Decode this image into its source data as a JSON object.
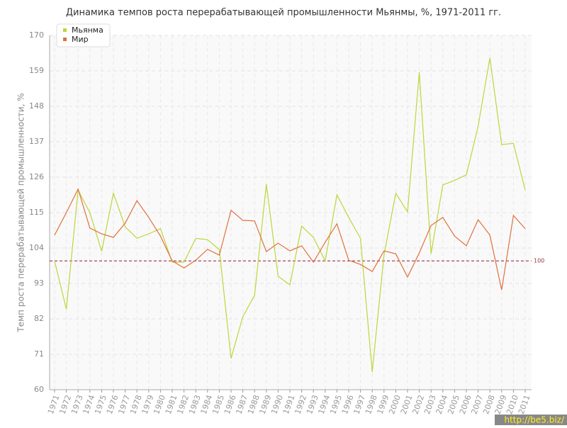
{
  "chart_data": {
    "type": "line",
    "title": "Динамика темпов роста перерабатывающей промышленности Мьянмы, %, 1971-2011 гг.",
    "y_label": "Темп роста перерабатывающей промышленности, %",
    "categories": [
      "1971",
      "1972",
      "1973",
      "1974",
      "1975",
      "1976",
      "1977",
      "1978",
      "1979",
      "1980",
      "1981",
      "1982",
      "1983",
      "1984",
      "1985",
      "1986",
      "1987",
      "1988",
      "1989",
      "1990",
      "1991",
      "1992",
      "1993",
      "1994",
      "1995",
      "1996",
      "1997",
      "1998",
      "1999",
      "2000",
      "2001",
      "2002",
      "2003",
      "2004",
      "2005",
      "2006",
      "2007",
      "2008",
      "2009",
      "2010",
      "2011"
    ],
    "series": [
      {
        "name": "Мьянма",
        "color": "#bcd63c",
        "values": [
          100,
          85,
          122,
          115,
          103,
          121,
          110.6,
          107,
          108.4,
          110,
          99.6,
          99.6,
          107,
          106.6,
          103.5,
          69.7,
          82.7,
          89.3,
          123.8,
          95.2,
          92.6,
          110.8,
          107.3,
          100,
          120.5,
          113.5,
          107,
          65.5,
          101.8,
          121,
          115.2,
          158.6,
          102.2,
          123.6,
          125,
          126.7,
          141.8,
          163,
          136.1,
          136.5,
          122
        ]
      },
      {
        "name": "Мир",
        "color": "#e0703c",
        "values": [
          108,
          115,
          122.3,
          110.2,
          108.4,
          107.3,
          111.7,
          118.7,
          113.5,
          107.7,
          100,
          97.8,
          100.2,
          103.6,
          101.8,
          115.7,
          112.6,
          112.4,
          102.9,
          105.5,
          103.1,
          104.7,
          99.6,
          105.8,
          111.5,
          100.2,
          98.9,
          96.7,
          103.1,
          102.2,
          95,
          102.5,
          111,
          113.5,
          107.7,
          104.7,
          112.8,
          108,
          91,
          114.1,
          110
        ]
      }
    ],
    "ylim": [
      60,
      170
    ],
    "yticks": [
      60,
      71,
      82,
      93,
      104,
      115,
      126,
      137,
      148,
      159,
      170
    ],
    "grid": true,
    "legend": "top-left",
    "reference_line": {
      "value": 100,
      "color": "#993344"
    },
    "watermark": "http://be5.biz/"
  }
}
